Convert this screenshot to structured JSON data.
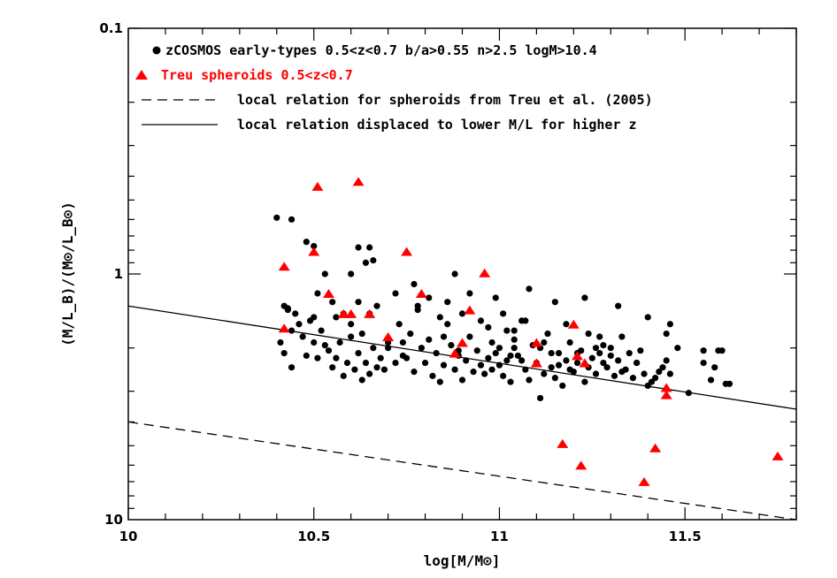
{
  "chart_data": {
    "type": "scatter",
    "xlabel": "log[M/M⊙]",
    "ylabel": "(M/L_B)/(M⊙/L_B⊙)",
    "xlim": [
      10.0,
      11.8
    ],
    "ylim": [
      10,
      0.1
    ],
    "yscale": "log-inverted",
    "x_ticks": [
      10,
      10.5,
      11,
      11.5
    ],
    "x_tick_labels": [
      "10",
      "10.5",
      "11",
      "11.5"
    ],
    "y_ticks": [
      0.1,
      1,
      10
    ],
    "y_tick_labels": [
      "0.1",
      "1",
      "10"
    ],
    "legend": {
      "position": "top-left",
      "entries": [
        {
          "marker": "filled-circle",
          "color": "#000000",
          "label": "zCOSMOS early-types 0.5<z<0.7 b/a>0.55 n>2.5 logM>10.4"
        },
        {
          "marker": "filled-triangle",
          "color": "#ff0000",
          "label": "Treu spheroids 0.5<z<0.7"
        },
        {
          "marker": "dashed-line",
          "color": "#000000",
          "label": "local relation for spheroids from Treu et al. (2005)"
        },
        {
          "marker": "solid-line",
          "color": "#000000",
          "label": "local relation displaced to lower M/L for higher z"
        }
      ]
    },
    "lines": [
      {
        "name": "local relation displaced to lower M/L for higher z",
        "style": "solid",
        "color": "#000000",
        "x": [
          10.0,
          11.8
        ],
        "y": [
          1.35,
          3.55
        ]
      },
      {
        "name": "local relation for spheroids from Treu et al. (2005)",
        "style": "dashed",
        "color": "#000000",
        "x": [
          10.0,
          11.8
        ],
        "y": [
          4.0,
          10.0
        ]
      }
    ],
    "series": [
      {
        "name": "zCOSMOS early-types 0.5<z<0.7 b/a>0.55 n>2.5 logM>10.4",
        "marker": "circle",
        "color": "#000000",
        "points": [
          [
            10.4,
            0.59
          ],
          [
            10.44,
            0.6
          ],
          [
            10.5,
            0.77
          ],
          [
            10.48,
            0.74
          ],
          [
            10.62,
            0.78
          ],
          [
            10.65,
            0.78
          ],
          [
            10.42,
            1.35
          ],
          [
            10.43,
            1.4
          ],
          [
            10.44,
            1.7
          ],
          [
            10.45,
            1.45
          ],
          [
            10.43,
            1.38
          ],
          [
            10.46,
            1.6
          ],
          [
            10.41,
            1.9
          ],
          [
            10.42,
            2.1
          ],
          [
            10.44,
            2.4
          ],
          [
            10.47,
            1.8
          ],
          [
            10.48,
            2.15
          ],
          [
            10.49,
            1.55
          ],
          [
            10.5,
            1.9
          ],
          [
            10.51,
            2.2
          ],
          [
            10.52,
            1.7
          ],
          [
            10.53,
            1.95
          ],
          [
            10.51,
            1.2
          ],
          [
            10.5,
            1.5
          ],
          [
            10.54,
            2.05
          ],
          [
            10.55,
            2.4
          ],
          [
            10.56,
            2.2
          ],
          [
            10.57,
            1.9
          ],
          [
            10.58,
            2.6
          ],
          [
            10.59,
            2.3
          ],
          [
            10.6,
            1.8
          ],
          [
            10.61,
            2.45
          ],
          [
            10.62,
            2.1
          ],
          [
            10.63,
            2.7
          ],
          [
            10.64,
            2.3
          ],
          [
            10.65,
            2.55
          ],
          [
            10.66,
            2.0
          ],
          [
            10.67,
            2.4
          ],
          [
            10.68,
            2.2
          ],
          [
            10.69,
            2.45
          ],
          [
            10.7,
            2.0
          ],
          [
            10.56,
            1.5
          ],
          [
            10.55,
            1.3
          ],
          [
            10.53,
            1.0
          ],
          [
            10.58,
            1.45
          ],
          [
            10.6,
            1.6
          ],
          [
            10.62,
            1.3
          ],
          [
            10.63,
            1.75
          ],
          [
            10.65,
            1.45
          ],
          [
            10.67,
            1.35
          ],
          [
            10.64,
            0.9
          ],
          [
            10.66,
            0.88
          ],
          [
            10.6,
            1.0
          ],
          [
            10.72,
            1.2
          ],
          [
            10.73,
            1.6
          ],
          [
            10.74,
            1.9
          ],
          [
            10.75,
            2.2
          ],
          [
            10.76,
            1.75
          ],
          [
            10.77,
            2.5
          ],
          [
            10.78,
            1.4
          ],
          [
            10.79,
            2.0
          ],
          [
            10.8,
            2.3
          ],
          [
            10.81,
            1.85
          ],
          [
            10.82,
            2.6
          ],
          [
            10.83,
            2.1
          ],
          [
            10.84,
            2.75
          ],
          [
            10.85,
            2.35
          ],
          [
            10.86,
            1.6
          ],
          [
            10.87,
            1.95
          ],
          [
            10.88,
            2.45
          ],
          [
            10.89,
            2.15
          ],
          [
            10.9,
            2.7
          ],
          [
            10.91,
            2.25
          ],
          [
            10.92,
            1.8
          ],
          [
            10.93,
            2.5
          ],
          [
            10.94,
            2.05
          ],
          [
            10.95,
            2.35
          ],
          [
            10.96,
            2.55
          ],
          [
            10.97,
            2.2
          ],
          [
            10.98,
            2.45
          ],
          [
            10.99,
            2.1
          ],
          [
            11.0,
            2.35
          ],
          [
            11.01,
            2.6
          ],
          [
            11.02,
            2.25
          ],
          [
            11.03,
            2.75
          ],
          [
            11.04,
            2.0
          ],
          [
            10.77,
            1.1
          ],
          [
            10.78,
            1.35
          ],
          [
            10.81,
            1.25
          ],
          [
            10.84,
            1.5
          ],
          [
            10.86,
            1.3
          ],
          [
            10.88,
            1.0
          ],
          [
            10.9,
            1.45
          ],
          [
            10.92,
            1.2
          ],
          [
            10.95,
            1.55
          ],
          [
            10.97,
            1.65
          ],
          [
            10.99,
            1.25
          ],
          [
            11.01,
            1.45
          ],
          [
            11.02,
            1.7
          ],
          [
            11.04,
            1.85
          ],
          [
            11.05,
            2.15
          ],
          [
            11.06,
            1.55
          ],
          [
            11.07,
            2.45
          ],
          [
            11.08,
            2.7
          ],
          [
            11.09,
            1.95
          ],
          [
            11.1,
            2.3
          ],
          [
            11.11,
            3.2
          ],
          [
            11.12,
            2.55
          ],
          [
            11.13,
            1.75
          ],
          [
            11.14,
            2.4
          ],
          [
            11.15,
            2.65
          ],
          [
            11.16,
            2.1
          ],
          [
            11.17,
            2.85
          ],
          [
            11.18,
            2.25
          ],
          [
            11.19,
            1.9
          ],
          [
            11.2,
            2.5
          ],
          [
            11.21,
            2.3
          ],
          [
            11.22,
            2.05
          ],
          [
            11.23,
            2.75
          ],
          [
            11.24,
            1.75
          ],
          [
            11.25,
            2.2
          ],
          [
            11.26,
            2.55
          ],
          [
            11.27,
            2.1
          ],
          [
            11.28,
            1.95
          ],
          [
            11.29,
            2.4
          ],
          [
            11.3,
            2.0
          ],
          [
            11.31,
            2.6
          ],
          [
            11.32,
            2.25
          ],
          [
            11.33,
            1.8
          ],
          [
            11.34,
            2.45
          ],
          [
            11.35,
            2.1
          ],
          [
            11.36,
            2.65
          ],
          [
            11.37,
            2.3
          ],
          [
            11.38,
            2.05
          ],
          [
            11.39,
            2.55
          ],
          [
            11.4,
            2.85
          ],
          [
            11.41,
            2.75
          ],
          [
            11.42,
            2.65
          ],
          [
            11.43,
            2.5
          ],
          [
            11.44,
            2.4
          ],
          [
            11.45,
            2.25
          ],
          [
            11.46,
            2.55
          ],
          [
            11.15,
            1.3
          ],
          [
            11.23,
            1.25
          ],
          [
            11.12,
            1.9
          ],
          [
            11.18,
            1.6
          ],
          [
            11.08,
            1.15
          ],
          [
            11.32,
            1.35
          ],
          [
            11.4,
            1.5
          ],
          [
            11.45,
            1.75
          ],
          [
            11.46,
            1.6
          ],
          [
            11.48,
            2.0
          ],
          [
            11.51,
            3.05
          ],
          [
            11.55,
            2.3
          ],
          [
            11.57,
            2.7
          ],
          [
            11.59,
            2.05
          ],
          [
            11.6,
            2.05
          ],
          [
            11.61,
            2.8
          ],
          [
            11.62,
            2.8
          ],
          [
            11.55,
            2.05
          ],
          [
            11.58,
            2.4
          ],
          [
            11.37,
            2.3
          ],
          [
            11.3,
            2.15
          ],
          [
            11.27,
            1.8
          ],
          [
            11.04,
            1.7
          ],
          [
            11.07,
            1.55
          ],
          [
            10.74,
            2.15
          ],
          [
            10.7,
            1.9
          ],
          [
            10.72,
            2.3
          ],
          [
            10.85,
            1.8
          ],
          [
            10.89,
            2.05
          ],
          [
            10.98,
            1.9
          ],
          [
            11.0,
            2.0
          ],
          [
            11.03,
            2.15
          ],
          [
            11.06,
            2.25
          ],
          [
            11.11,
            2.0
          ],
          [
            11.14,
            2.1
          ],
          [
            11.16,
            2.35
          ],
          [
            11.19,
            2.45
          ],
          [
            11.21,
            2.1
          ],
          [
            11.24,
            2.4
          ],
          [
            11.26,
            2.0
          ],
          [
            11.28,
            2.3
          ],
          [
            11.33,
            2.5
          ]
        ]
      },
      {
        "name": "Treu spheroids 0.5<z<0.7",
        "marker": "triangle",
        "color": "#ff0000",
        "points": [
          [
            10.42,
            0.93
          ],
          [
            10.42,
            1.66
          ],
          [
            10.5,
            0.81
          ],
          [
            10.51,
            0.44
          ],
          [
            10.54,
            1.2
          ],
          [
            10.58,
            1.45
          ],
          [
            10.6,
            1.45
          ],
          [
            10.62,
            0.42
          ],
          [
            10.65,
            1.45
          ],
          [
            10.7,
            1.8
          ],
          [
            10.75,
            0.81
          ],
          [
            10.79,
            1.2
          ],
          [
            10.88,
            2.1
          ],
          [
            10.9,
            1.9
          ],
          [
            10.92,
            1.4
          ],
          [
            10.96,
            0.99
          ],
          [
            11.1,
            2.3
          ],
          [
            11.1,
            1.9
          ],
          [
            11.17,
            4.9
          ],
          [
            11.2,
            1.6
          ],
          [
            11.21,
            2.15
          ],
          [
            11.22,
            6.0
          ],
          [
            11.23,
            2.3
          ],
          [
            11.39,
            7.0
          ],
          [
            11.42,
            5.1
          ],
          [
            11.45,
            2.9
          ],
          [
            11.45,
            3.1
          ],
          [
            11.75,
            5.5
          ]
        ]
      }
    ]
  }
}
